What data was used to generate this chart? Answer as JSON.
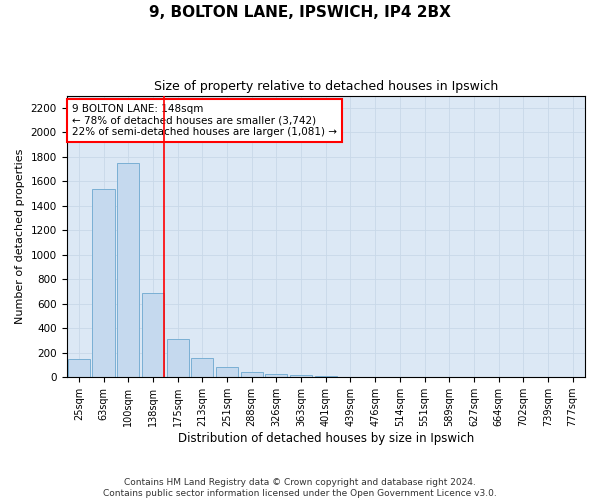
{
  "title1": "9, BOLTON LANE, IPSWICH, IP4 2BX",
  "title2": "Size of property relative to detached houses in Ipswich",
  "xlabel": "Distribution of detached houses by size in Ipswich",
  "ylabel": "Number of detached properties",
  "categories": [
    "25sqm",
    "63sqm",
    "100sqm",
    "138sqm",
    "175sqm",
    "213sqm",
    "251sqm",
    "288sqm",
    "326sqm",
    "363sqm",
    "401sqm",
    "439sqm",
    "476sqm",
    "514sqm",
    "551sqm",
    "589sqm",
    "627sqm",
    "664sqm",
    "702sqm",
    "739sqm",
    "777sqm"
  ],
  "values": [
    150,
    1540,
    1750,
    690,
    310,
    155,
    80,
    42,
    25,
    20,
    12,
    5,
    0,
    0,
    0,
    0,
    0,
    0,
    0,
    0,
    0
  ],
  "bar_color": "#c5d9ee",
  "bar_edge_color": "#7aafd4",
  "vline_x": 3.45,
  "vline_color": "red",
  "annotation_text": "9 BOLTON LANE: 148sqm\n← 78% of detached houses are smaller (3,742)\n22% of semi-detached houses are larger (1,081) →",
  "annotation_box_color": "white",
  "annotation_box_edge_color": "red",
  "ylim": [
    0,
    2300
  ],
  "yticks": [
    0,
    200,
    400,
    600,
    800,
    1000,
    1200,
    1400,
    1600,
    1800,
    2000,
    2200
  ],
  "grid_color": "#c8d8e8",
  "background_color": "#dce8f5",
  "footnote1": "Contains HM Land Registry data © Crown copyright and database right 2024.",
  "footnote2": "Contains public sector information licensed under the Open Government Licence v3.0."
}
